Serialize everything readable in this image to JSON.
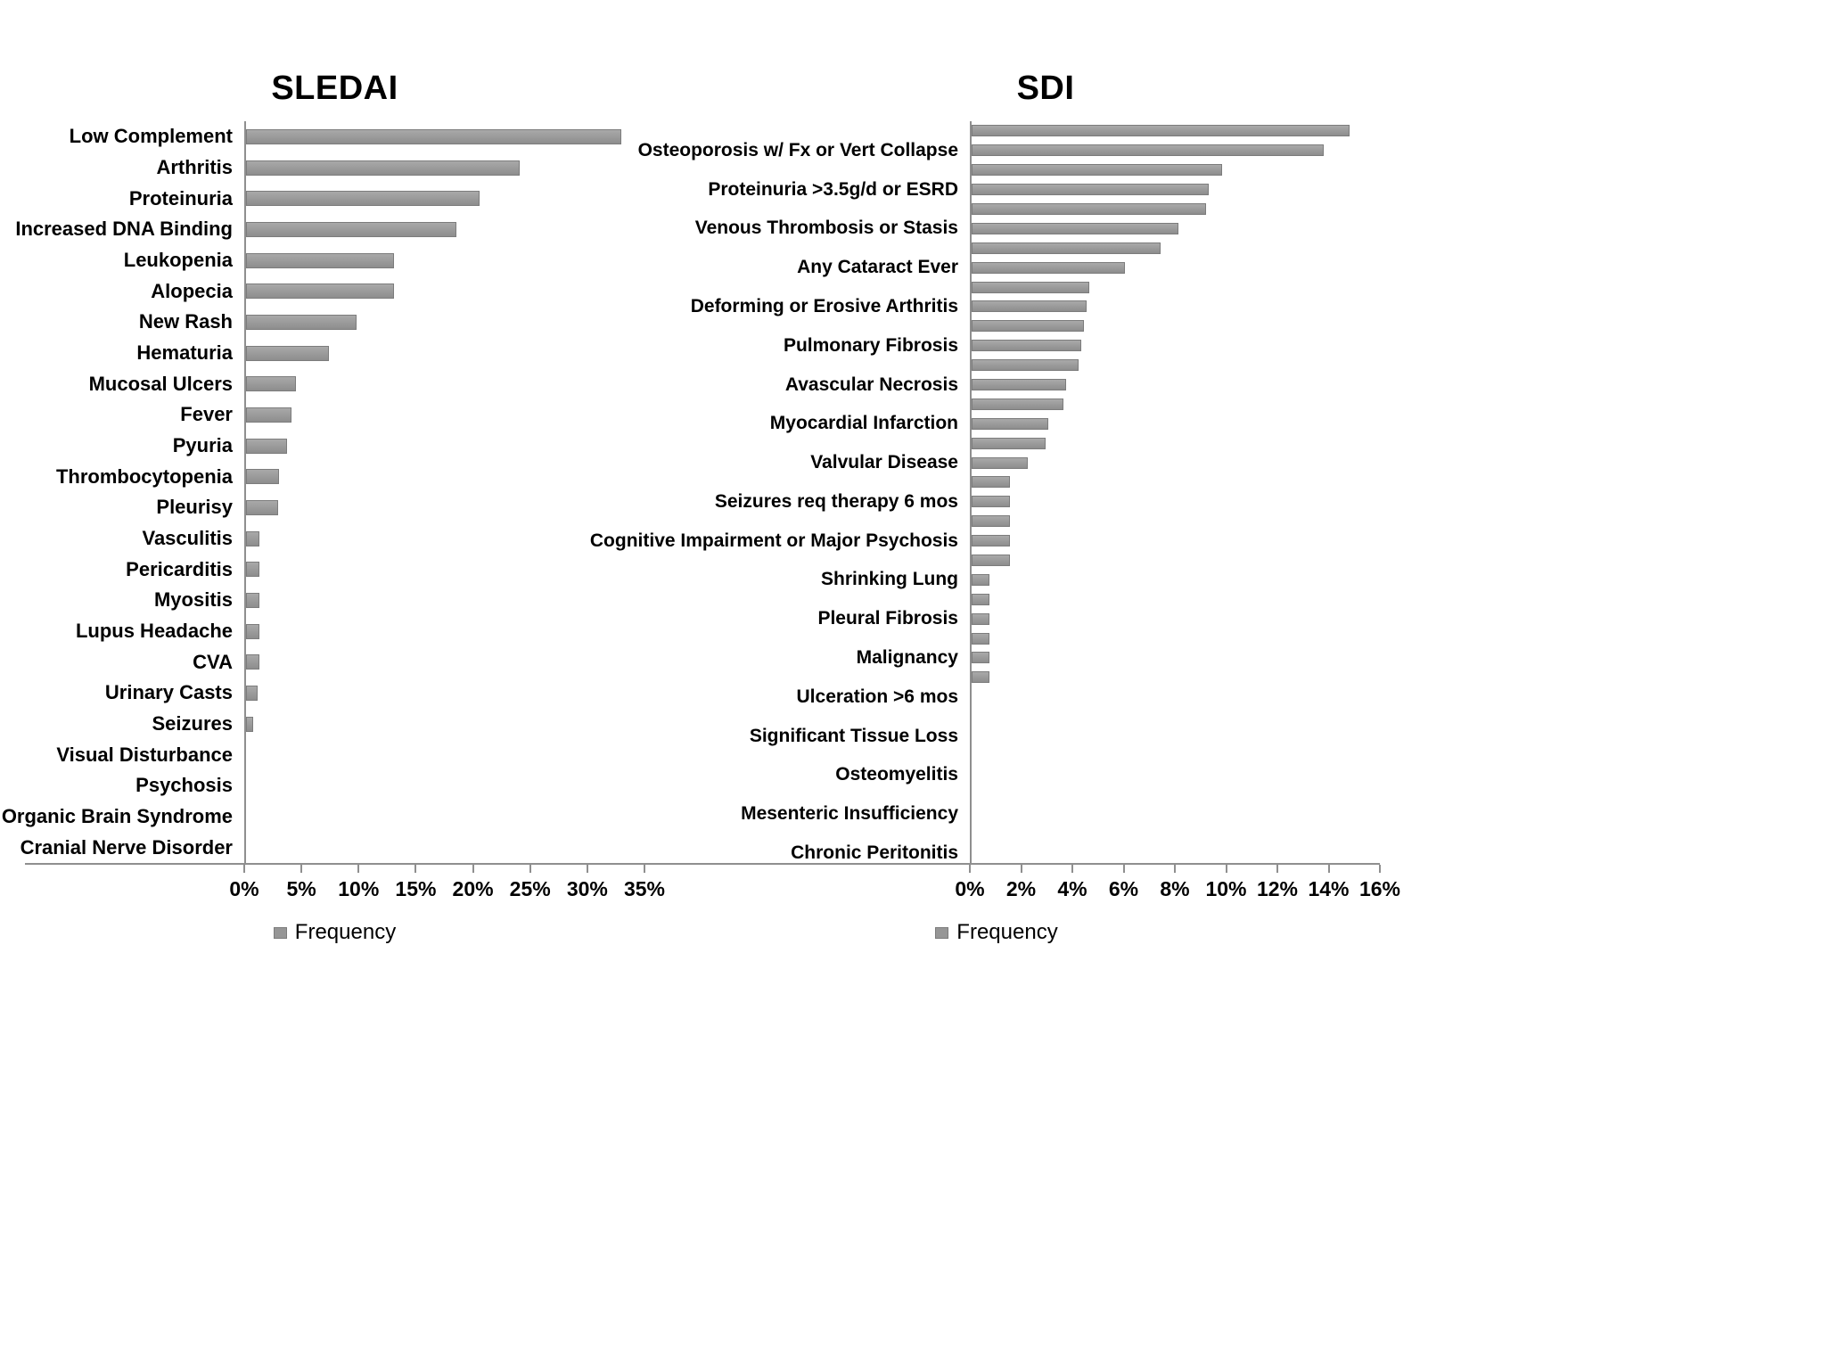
{
  "figure": {
    "background": "#ffffff",
    "text_color": "#000000",
    "axis_color": "#8f8f8f",
    "bar_color": "#969696"
  },
  "chart_data": [
    {
      "type": "bar",
      "orientation": "horizontal",
      "title": "SLEDAI",
      "legend": "Frequency",
      "legend_position": "bottom",
      "xlabel": "",
      "ylabel": "",
      "xlim": [
        0,
        35
      ],
      "xticks": [
        0,
        5,
        10,
        15,
        20,
        25,
        30,
        35
      ],
      "xtick_suffix": "%",
      "grid": false,
      "categories": [
        "Low Complement",
        "Arthritis",
        "Proteinuria",
        "Increased DNA Binding",
        "Leukopenia",
        "Alopecia",
        "New Rash",
        "Hematuria",
        "Mucosal Ulcers",
        "Fever",
        "Pyuria",
        "Thrombocytopenia",
        "Pleurisy",
        "Vasculitis",
        "Pericarditis",
        "Myositis",
        "Lupus Headache",
        "CVA",
        "Urinary Casts",
        "Seizures",
        "Visual Disturbance",
        "Psychosis",
        "Organic Brain Syndrome",
        "Cranial Nerve Disorder"
      ],
      "values": [
        33,
        24,
        20.5,
        18.5,
        13,
        13,
        9.7,
        7.3,
        4.4,
        4,
        3.6,
        2.9,
        2.8,
        1.2,
        1.2,
        1.2,
        1.2,
        1.2,
        1,
        0.6,
        0,
        0,
        0,
        0
      ]
    },
    {
      "type": "bar",
      "orientation": "horizontal",
      "title": "SDI",
      "legend": "Frequency",
      "legend_position": "bottom",
      "xlabel": "",
      "ylabel": "",
      "xlim": [
        0,
        16
      ],
      "xticks": [
        0,
        2,
        4,
        6,
        8,
        10,
        12,
        14,
        16
      ],
      "xtick_suffix": "%",
      "grid": false,
      "note": "Axis labels appear on alternate bars only; unlabeled rows are empty strings",
      "categories": [
        "",
        "Osteoporosis w/ Fx or Vert Collapse",
        "",
        "Proteinuria >3.5g/d or ESRD",
        "",
        "Venous Thrombosis or Stasis",
        "",
        "Any Cataract Ever",
        "",
        "Deforming or Erosive Arthritis",
        "",
        "Pulmonary Fibrosis",
        "",
        "Avascular Necrosis",
        "",
        "Myocardial Infarction",
        "",
        "Valvular Disease",
        "",
        "Seizures req therapy 6 mos",
        "",
        "Cognitive Impairment or Major Psychosis",
        "",
        "Shrinking Lung",
        "",
        "Pleural Fibrosis",
        "",
        "Malignancy",
        "",
        "Ulceration >6 mos",
        "",
        "Significant Tissue Loss",
        "",
        "Osteomyelitis",
        "",
        "Mesenteric Insufficiency",
        "",
        "Chronic Peritonitis"
      ],
      "values": [
        14.8,
        13.8,
        9.8,
        9.3,
        9.2,
        8.1,
        7.4,
        6,
        4.6,
        4.5,
        4.4,
        4.3,
        4.2,
        3.7,
        3.6,
        3,
        2.9,
        2.2,
        1.5,
        1.5,
        1.5,
        1.5,
        1.5,
        0.7,
        0.7,
        0.7,
        0.7,
        0.7,
        0.7,
        0,
        0,
        0,
        0,
        0,
        0,
        0,
        0,
        0
      ]
    }
  ]
}
